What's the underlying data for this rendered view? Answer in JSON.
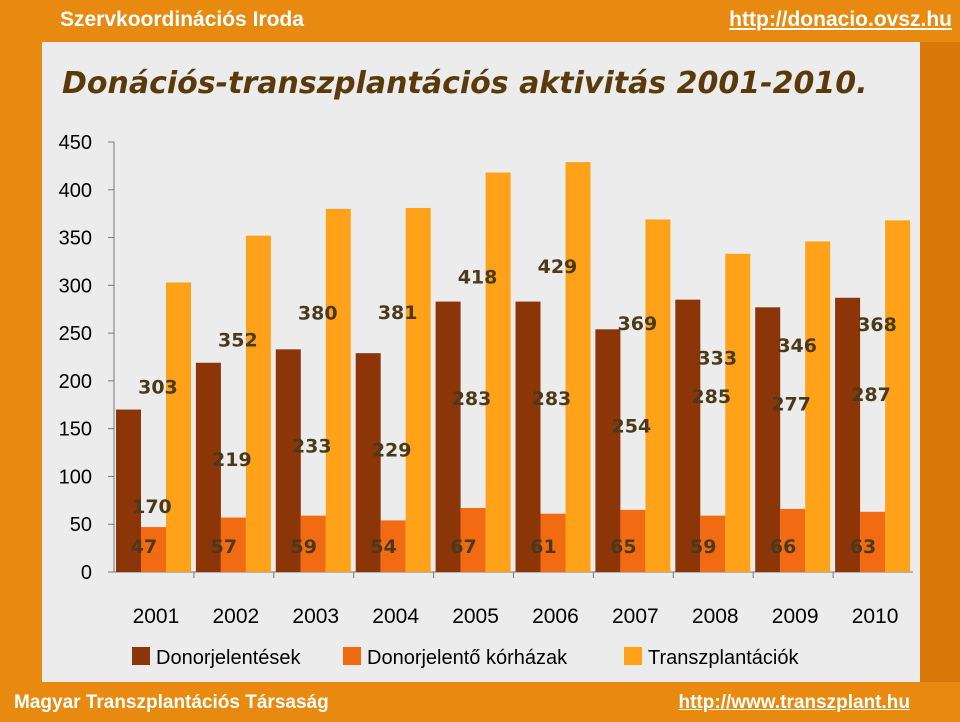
{
  "header": {
    "left": "Szervkoordinációs Iroda",
    "right": "http://donacio.ovsz.hu"
  },
  "footer": {
    "left": "Magyar Transzplantációs Társaság",
    "right": "http://www.transzplant.hu"
  },
  "colors": {
    "series1": "#8b3508",
    "series2": "#f26a12",
    "series3": "#ffa21a"
  },
  "chart_data": {
    "type": "bar",
    "title": "Donációs-transzplantációs aktivitás 2001-2010.",
    "categories": [
      "2001",
      "2002",
      "2003",
      "2004",
      "2005",
      "2006",
      "2007",
      "2008",
      "2009",
      "2010"
    ],
    "yticks": [
      "0",
      "50",
      "100",
      "150",
      "200",
      "250",
      "300",
      "350",
      "400",
      "450"
    ],
    "ylim": [
      0,
      450
    ],
    "series": [
      {
        "name": "Donorjelentések",
        "values": [
          170,
          219,
          233,
          229,
          283,
          283,
          254,
          285,
          277,
          287
        ]
      },
      {
        "name": "Donorjelentő kórházak",
        "values": [
          47,
          57,
          59,
          54,
          67,
          61,
          65,
          59,
          66,
          63
        ]
      },
      {
        "name": "Transzplantációk",
        "values": [
          303,
          352,
          380,
          381,
          418,
          429,
          369,
          333,
          346,
          368
        ]
      }
    ],
    "legend": "bottom"
  }
}
